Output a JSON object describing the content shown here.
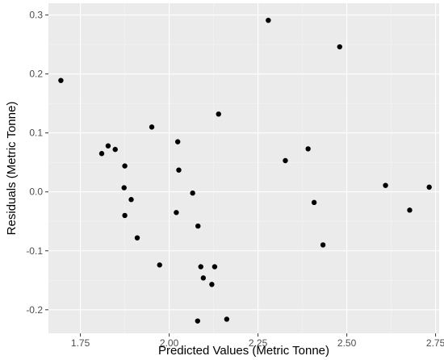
{
  "chart_data": {
    "type": "scatter",
    "xlabel": "Predicted Values (Metric Tonne)",
    "ylabel": "Residuals (Metric Tonne)",
    "xlim": [
      1.66,
      2.76
    ],
    "ylim": [
      -0.24,
      0.32
    ],
    "x_ticks": [
      {
        "value": 1.75,
        "label": "1.75"
      },
      {
        "value": 2.0,
        "label": "2.00"
      },
      {
        "value": 2.25,
        "label": "2.25"
      },
      {
        "value": 2.5,
        "label": "2.50"
      },
      {
        "value": 2.75,
        "label": "2.75"
      }
    ],
    "y_ticks": [
      {
        "value": -0.2,
        "label": "-0.2"
      },
      {
        "value": -0.1,
        "label": "-0.1"
      },
      {
        "value": 0.0,
        "label": "0.0"
      },
      {
        "value": 0.1,
        "label": "0.1"
      },
      {
        "value": 0.2,
        "label": "0.2"
      },
      {
        "value": 0.3,
        "label": "0.3"
      }
    ],
    "grid": true,
    "colors": {
      "panel": "#ebebeb",
      "grid_major": "#ffffff",
      "grid_minor": "#f4f4f4",
      "point": "#000000"
    },
    "points": [
      {
        "x": 1.695,
        "y": 0.189
      },
      {
        "x": 1.81,
        "y": 0.065
      },
      {
        "x": 1.828,
        "y": 0.078
      },
      {
        "x": 1.848,
        "y": 0.072
      },
      {
        "x": 1.875,
        "y": 0.044
      },
      {
        "x": 1.873,
        "y": 0.007
      },
      {
        "x": 1.875,
        "y": -0.04
      },
      {
        "x": 1.893,
        "y": -0.013
      },
      {
        "x": 1.91,
        "y": -0.078
      },
      {
        "x": 1.951,
        "y": 0.11
      },
      {
        "x": 1.973,
        "y": -0.124
      },
      {
        "x": 2.02,
        "y": -0.035
      },
      {
        "x": 2.024,
        "y": 0.085
      },
      {
        "x": 2.027,
        "y": 0.037
      },
      {
        "x": 2.066,
        "y": -0.002
      },
      {
        "x": 2.08,
        "y": -0.219
      },
      {
        "x": 2.081,
        "y": -0.058
      },
      {
        "x": 2.089,
        "y": -0.127
      },
      {
        "x": 2.096,
        "y": -0.146
      },
      {
        "x": 2.12,
        "y": -0.157
      },
      {
        "x": 2.128,
        "y": -0.127
      },
      {
        "x": 2.139,
        "y": 0.132
      },
      {
        "x": 2.162,
        "y": -0.216
      },
      {
        "x": 2.279,
        "y": 0.291
      },
      {
        "x": 2.327,
        "y": 0.053
      },
      {
        "x": 2.391,
        "y": 0.073
      },
      {
        "x": 2.408,
        "y": -0.018
      },
      {
        "x": 2.433,
        "y": -0.09
      },
      {
        "x": 2.48,
        "y": 0.246
      },
      {
        "x": 2.609,
        "y": 0.011
      },
      {
        "x": 2.677,
        "y": -0.031
      },
      {
        "x": 2.732,
        "y": 0.008
      }
    ]
  }
}
